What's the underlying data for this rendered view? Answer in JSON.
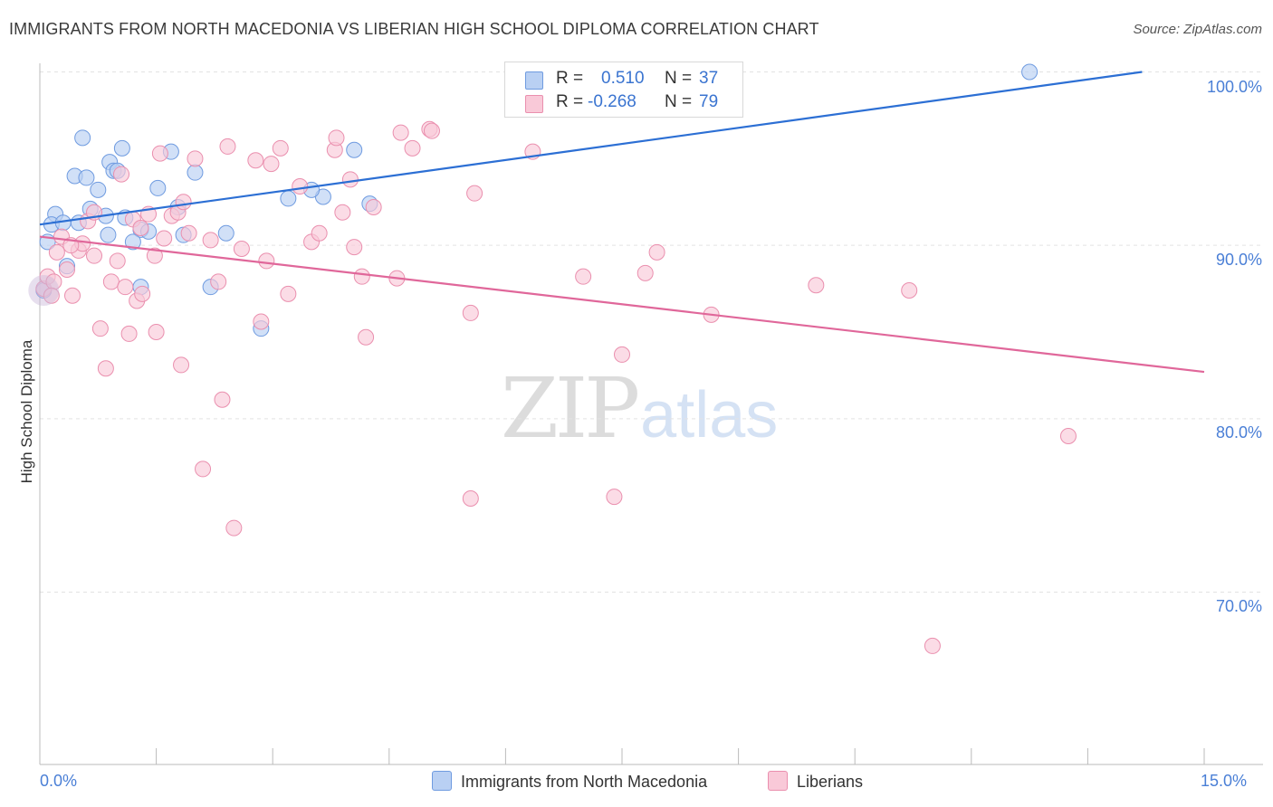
{
  "header": {
    "title": "IMMIGRANTS FROM NORTH MACEDONIA VS LIBERIAN HIGH SCHOOL DIPLOMA CORRELATION CHART",
    "source": "Source: ZipAtlas.com"
  },
  "watermark": {
    "zip": "ZIP",
    "atlas": "atlas"
  },
  "legend": {
    "rows": [
      {
        "r_label": "R =",
        "r_value": "0.510",
        "n_label": "N =",
        "n_value": "37",
        "color": "#a9c4ef"
      },
      {
        "r_label": "R =",
        "r_value": "-0.268",
        "n_label": "N =",
        "n_value": "79",
        "color": "#f6b6ca"
      }
    ]
  },
  "bottom_legend": {
    "items": [
      {
        "label": "Immigrants from North Macedonia",
        "color": "#a9c4ef"
      },
      {
        "label": "Liberians",
        "color": "#f6b6ca"
      }
    ]
  },
  "chart_data": {
    "type": "scatter",
    "title": "IMMIGRANTS FROM NORTH MACEDONIA VS LIBERIAN HIGH SCHOOL DIPLOMA CORRELATION CHART",
    "xlabel": "",
    "ylabel": "High School Diploma",
    "xlim": [
      0,
      15
    ],
    "ylim": [
      61,
      101
    ],
    "x_tick_labels": [
      "0.0%",
      "15.0%"
    ],
    "y_ticks": [
      70,
      80,
      90,
      100
    ],
    "y_tick_labels": [
      "70.0%",
      "80.0%",
      "90.0%",
      "100.0%"
    ],
    "grid": true,
    "legend_position": "top-center",
    "series": [
      {
        "name": "Immigrants from North Macedonia",
        "color": "#6f9be0",
        "fill": "#b9d0f3",
        "trend": {
          "x": [
            0.0,
            14.2
          ],
          "y": [
            91.2,
            100.0
          ],
          "color": "#2c6fd4"
        },
        "points": [
          [
            0.55,
            96.2
          ],
          [
            1.06,
            95.6
          ],
          [
            1.69,
            95.4
          ],
          [
            0.9,
            94.8
          ],
          [
            0.95,
            94.3
          ],
          [
            1.0,
            94.3
          ],
          [
            2.0,
            94.2
          ],
          [
            0.45,
            94.0
          ],
          [
            0.6,
            93.9
          ],
          [
            0.75,
            93.2
          ],
          [
            1.52,
            93.3
          ],
          [
            3.2,
            92.7
          ],
          [
            3.65,
            92.8
          ],
          [
            3.5,
            93.2
          ],
          [
            4.25,
            92.4
          ],
          [
            0.65,
            92.1
          ],
          [
            1.78,
            92.2
          ],
          [
            0.2,
            91.8
          ],
          [
            0.85,
            91.7
          ],
          [
            1.1,
            91.6
          ],
          [
            0.15,
            91.2
          ],
          [
            0.3,
            91.3
          ],
          [
            0.5,
            91.3
          ],
          [
            1.3,
            90.9
          ],
          [
            1.4,
            90.8
          ],
          [
            0.88,
            90.6
          ],
          [
            1.85,
            90.6
          ],
          [
            2.4,
            90.7
          ],
          [
            1.2,
            90.2
          ],
          [
            0.1,
            90.2
          ],
          [
            0.35,
            88.8
          ],
          [
            1.3,
            87.6
          ],
          [
            2.2,
            87.6
          ],
          [
            2.85,
            85.2
          ],
          [
            4.05,
            95.5
          ],
          [
            12.75,
            100.0
          ],
          [
            0.05,
            87.4
          ]
        ]
      },
      {
        "name": "Liberians",
        "color": "#ea8fae",
        "fill": "#f9c9d8",
        "trend": {
          "x": [
            0.0,
            15.0
          ],
          "y": [
            90.5,
            82.7
          ],
          "color": "#e0679a"
        },
        "points": [
          [
            0.05,
            87.5
          ],
          [
            0.1,
            88.2
          ],
          [
            0.18,
            87.9
          ],
          [
            0.22,
            89.6
          ],
          [
            0.28,
            90.5
          ],
          [
            0.35,
            88.6
          ],
          [
            0.42,
            87.1
          ],
          [
            0.5,
            89.7
          ],
          [
            0.55,
            90.1
          ],
          [
            0.62,
            91.4
          ],
          [
            0.7,
            91.9
          ],
          [
            0.78,
            85.2
          ],
          [
            0.85,
            82.9
          ],
          [
            0.92,
            87.9
          ],
          [
            1.0,
            89.1
          ],
          [
            1.05,
            94.1
          ],
          [
            1.1,
            87.6
          ],
          [
            1.2,
            91.5
          ],
          [
            1.25,
            86.8
          ],
          [
            1.32,
            87.2
          ],
          [
            1.4,
            91.8
          ],
          [
            1.48,
            89.4
          ],
          [
            1.55,
            95.3
          ],
          [
            1.6,
            90.4
          ],
          [
            1.7,
            91.7
          ],
          [
            1.78,
            91.9
          ],
          [
            1.85,
            92.5
          ],
          [
            1.92,
            90.7
          ],
          [
            2.0,
            95.0
          ],
          [
            2.1,
            77.1
          ],
          [
            2.2,
            90.3
          ],
          [
            2.3,
            87.9
          ],
          [
            2.35,
            81.1
          ],
          [
            2.42,
            95.7
          ],
          [
            2.5,
            73.7
          ],
          [
            2.6,
            89.8
          ],
          [
            2.78,
            94.9
          ],
          [
            2.85,
            85.6
          ],
          [
            2.92,
            89.1
          ],
          [
            2.98,
            94.7
          ],
          [
            3.1,
            95.6
          ],
          [
            3.2,
            87.2
          ],
          [
            3.35,
            93.4
          ],
          [
            3.5,
            90.2
          ],
          [
            3.6,
            90.7
          ],
          [
            3.8,
            95.5
          ],
          [
            3.9,
            91.9
          ],
          [
            4.0,
            93.8
          ],
          [
            4.05,
            89.9
          ],
          [
            4.15,
            88.2
          ],
          [
            4.2,
            84.7
          ],
          [
            4.3,
            92.2
          ],
          [
            4.6,
            88.1
          ],
          [
            4.65,
            96.5
          ],
          [
            4.8,
            95.6
          ],
          [
            5.02,
            96.7
          ],
          [
            5.05,
            96.6
          ],
          [
            5.55,
            86.1
          ],
          [
            5.6,
            93.0
          ],
          [
            5.55,
            75.4
          ],
          [
            6.35,
            95.4
          ],
          [
            7.0,
            88.2
          ],
          [
            7.4,
            75.5
          ],
          [
            7.5,
            83.7
          ],
          [
            7.8,
            88.4
          ],
          [
            7.95,
            89.6
          ],
          [
            8.65,
            86.0
          ],
          [
            10.0,
            87.7
          ],
          [
            11.2,
            87.4
          ],
          [
            11.5,
            66.9
          ],
          [
            13.25,
            79.0
          ],
          [
            1.3,
            91.0
          ],
          [
            0.7,
            89.4
          ],
          [
            0.4,
            90.0
          ],
          [
            0.15,
            87.1
          ],
          [
            3.82,
            96.2
          ],
          [
            1.82,
            83.1
          ],
          [
            1.5,
            85.0
          ],
          [
            1.15,
            84.9
          ]
        ]
      }
    ]
  }
}
